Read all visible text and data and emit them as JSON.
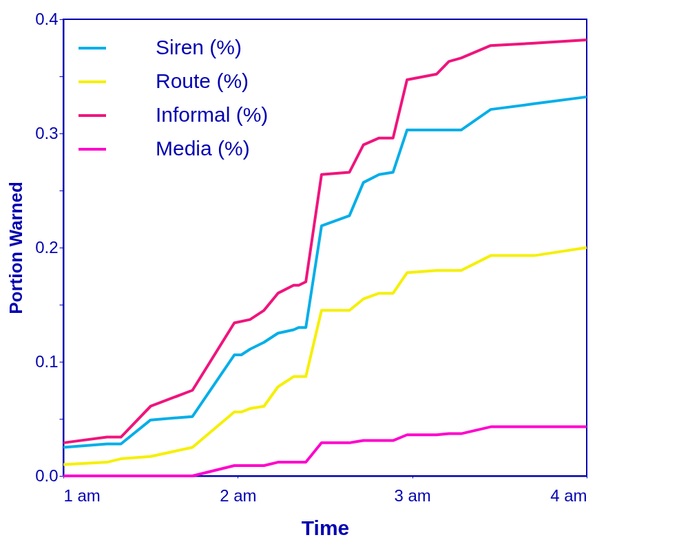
{
  "chart_data": {
    "type": "line",
    "xlabel": "Time",
    "ylabel": "Portion Warned",
    "xlim": [
      1,
      4
    ],
    "xticks": [
      {
        "value": 1,
        "label": "1 am"
      },
      {
        "value": 2,
        "label": "2 am"
      },
      {
        "value": 3,
        "label": "3 am"
      },
      {
        "value": 4,
        "label": "4 am"
      }
    ],
    "ylim": [
      0,
      0.4
    ],
    "yticks": [
      {
        "value": 0,
        "label": "0.0"
      },
      {
        "value": 0.05,
        "label": null
      },
      {
        "value": 0.1,
        "label": "0.1"
      },
      {
        "value": 0.15,
        "label": null
      },
      {
        "value": 0.2,
        "label": "0.2"
      },
      {
        "value": 0.25,
        "label": null
      },
      {
        "value": 0.3,
        "label": "0.3"
      },
      {
        "value": 0.35,
        "label": null
      },
      {
        "value": 0.4,
        "label": "0.4"
      }
    ],
    "grid": false,
    "legend": "top left",
    "marker": "none",
    "line_style": "solid",
    "series": [
      {
        "name": "Siren (%)",
        "color": "#00aee8",
        "x": [
          1.0,
          1.25,
          1.33,
          1.5,
          1.74,
          1.98,
          2.02,
          2.07,
          2.15,
          2.23,
          2.32,
          2.35,
          2.39,
          2.48,
          2.64,
          2.72,
          2.81,
          2.89,
          2.97,
          3.14,
          3.28,
          3.45,
          3.7,
          4.0
        ],
        "values": [
          0.025,
          0.028,
          0.028,
          0.049,
          0.052,
          0.106,
          0.106,
          0.111,
          0.117,
          0.125,
          0.128,
          0.13,
          0.13,
          0.219,
          0.228,
          0.257,
          0.264,
          0.266,
          0.303,
          0.303,
          0.303,
          0.321,
          0.326,
          0.332
        ]
      },
      {
        "name": "Route (%)",
        "color": "#f5f000",
        "x": [
          1.0,
          1.25,
          1.33,
          1.5,
          1.74,
          1.98,
          2.02,
          2.07,
          2.15,
          2.23,
          2.32,
          2.39,
          2.48,
          2.64,
          2.72,
          2.81,
          2.89,
          2.97,
          3.14,
          3.28,
          3.45,
          3.7,
          4.0
        ],
        "values": [
          0.01,
          0.012,
          0.015,
          0.017,
          0.025,
          0.056,
          0.056,
          0.059,
          0.061,
          0.078,
          0.087,
          0.087,
          0.145,
          0.145,
          0.155,
          0.16,
          0.16,
          0.178,
          0.18,
          0.18,
          0.193,
          0.193,
          0.2
        ]
      },
      {
        "name": "Informal (%)",
        "color": "#f0147c",
        "x": [
          1.0,
          1.25,
          1.33,
          1.5,
          1.74,
          1.98,
          2.07,
          2.15,
          2.23,
          2.32,
          2.35,
          2.39,
          2.48,
          2.64,
          2.72,
          2.81,
          2.89,
          2.97,
          3.14,
          3.21,
          3.28,
          3.45,
          3.7,
          4.0
        ],
        "values": [
          0.029,
          0.034,
          0.034,
          0.061,
          0.075,
          0.134,
          0.137,
          0.145,
          0.16,
          0.167,
          0.167,
          0.17,
          0.264,
          0.266,
          0.29,
          0.296,
          0.296,
          0.347,
          0.352,
          0.363,
          0.366,
          0.377,
          0.379,
          0.382
        ]
      },
      {
        "name": "Media (%)",
        "color": "#ff00cc",
        "x": [
          1.0,
          1.74,
          1.98,
          2.15,
          2.23,
          2.39,
          2.48,
          2.64,
          2.72,
          2.89,
          2.97,
          3.14,
          3.21,
          3.28,
          3.45,
          4.0
        ],
        "values": [
          0,
          0,
          0.009,
          0.009,
          0.012,
          0.012,
          0.029,
          0.029,
          0.031,
          0.031,
          0.036,
          0.036,
          0.037,
          0.037,
          0.043,
          0.043
        ]
      }
    ]
  }
}
